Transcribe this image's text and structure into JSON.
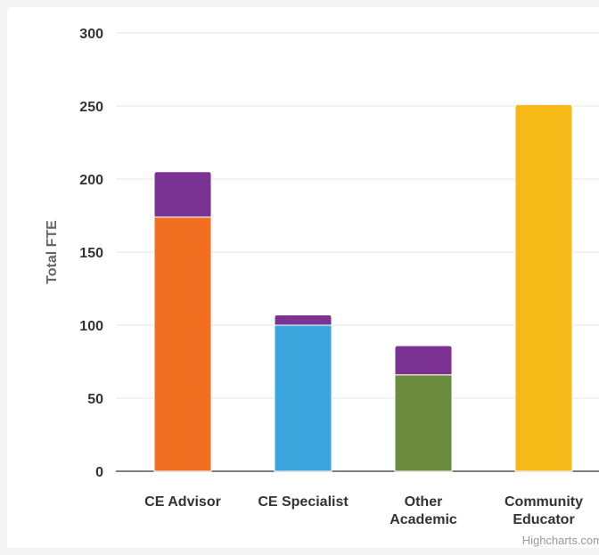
{
  "chart_data": {
    "type": "bar",
    "stacked": true,
    "title": "",
    "xlabel": "",
    "ylabel": "Total FTE",
    "ylim": [
      0,
      300
    ],
    "yticks": [
      0,
      50,
      100,
      150,
      200,
      250,
      300
    ],
    "grid": true,
    "categories": [
      [
        "CE Advisor"
      ],
      [
        "CE Specialist"
      ],
      [
        "Other",
        "Academic"
      ],
      [
        "Community",
        "Educator"
      ]
    ],
    "series": [
      {
        "colors": [
          "#f26f21",
          "#3aa6dd",
          "#6b8c3e",
          "#f7b918"
        ],
        "values": [
          174,
          100,
          66,
          251
        ]
      },
      {
        "colors": [
          "#7b3293",
          "#7b3293",
          "#7b3293",
          "#7b3293"
        ],
        "values": [
          31,
          7,
          20,
          0
        ]
      }
    ],
    "credits": "Highcharts.com"
  }
}
